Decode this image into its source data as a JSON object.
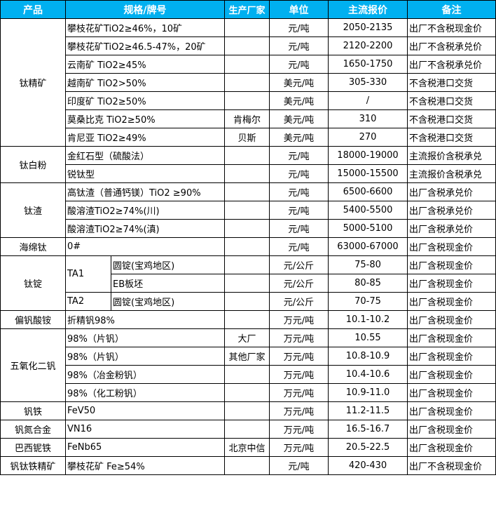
{
  "header_color": "#00B0F0",
  "headers": [
    "产品",
    "规格/牌号",
    "生产厂家",
    "单位",
    "主流报价",
    "备注"
  ],
  "groups": [
    {
      "product": "钛精矿",
      "rows": [
        {
          "spec": "攀枝花矿TiO2≥46%，10矿",
          "maker": "",
          "unit": "元/吨",
          "price": "2050-2135",
          "note": "出厂不含税现金价"
        },
        {
          "spec": "攀枝花矿TiO2≥46.5-47%，20矿",
          "maker": "",
          "unit": "元/吨",
          "price": "2120-2200",
          "note": "出厂不含税承兑价"
        },
        {
          "spec": "云南矿 TiO2≥45%",
          "maker": "",
          "unit": "元/吨",
          "price": "1650-1750",
          "note": "出厂不含税承兑价"
        },
        {
          "spec": "越南矿 TiO2>50%",
          "maker": "",
          "unit": "美元/吨",
          "price": "305-330",
          "note": "不含税港口交货"
        },
        {
          "spec": "印度矿 TiO2≥50%",
          "maker": "",
          "unit": "美元/吨",
          "price": "/",
          "note": "不含税港口交货"
        },
        {
          "spec": "莫桑比克 TiO2≥50%",
          "maker": "肯梅尔",
          "unit": "美元/吨",
          "price": "310",
          "note": "不含税港口交货"
        },
        {
          "spec": "肯尼亚 TiO2≥49%",
          "maker": "贝斯",
          "unit": "美元/吨",
          "price": "270",
          "note": "不含税港口交货"
        }
      ]
    },
    {
      "product": "钛白粉",
      "rows": [
        {
          "spec": "金红石型（硫酸法）",
          "maker": "",
          "unit": "元/吨",
          "price": "18000-19000",
          "note": "主流报价含税承兑"
        },
        {
          "spec": "锐钛型",
          "maker": "",
          "unit": "元/吨",
          "price": "15000-15500",
          "note": "主流报价含税承兑"
        }
      ]
    },
    {
      "product": "钛渣",
      "rows": [
        {
          "spec": "高钛渣（普通钙镁）TiO2 ≥90%",
          "maker": "",
          "unit": "元/吨",
          "price": "6500-6600",
          "note": "出厂含税承兑价"
        },
        {
          "spec": "酸溶渣TiO2≥74%(川)",
          "maker": "",
          "unit": "元/吨",
          "price": "5400-5500",
          "note": "出厂含税承兑价"
        },
        {
          "spec": "酸溶渣TiO2≥74%(滇)",
          "maker": "",
          "unit": "元/吨",
          "price": "5000-5100",
          "note": "出厂含税承兑价"
        }
      ]
    },
    {
      "product": "海绵钛",
      "rows": [
        {
          "spec": "0#",
          "maker": "",
          "unit": "元/吨",
          "price": "63000-67000",
          "note": "出厂含税现金价"
        }
      ]
    },
    {
      "product": "钛锭",
      "rows": [
        {
          "grade": "TA1",
          "grade_span": 2,
          "spec": "圆锭(宝鸡地区)",
          "maker": "",
          "unit": "元/公斤",
          "price": "75-80",
          "note": "出厂含税现金价"
        },
        {
          "spec": "EB板坯",
          "maker": "",
          "unit": "元/公斤",
          "price": "80-85",
          "note": "出厂含税现金价"
        },
        {
          "grade": "TA2",
          "grade_span": 1,
          "spec": "圆锭(宝鸡地区)",
          "maker": "",
          "unit": "元/公斤",
          "price": "70-75",
          "note": "出厂含税现金价"
        }
      ]
    },
    {
      "product": "偏钒酸铵",
      "rows": [
        {
          "spec": "折精钒98%",
          "maker": "",
          "unit": "万元/吨",
          "price": "10.1-10.2",
          "note": "出厂含税现金价"
        }
      ]
    },
    {
      "product": "五氧化二钒",
      "rows": [
        {
          "spec": "98%（片钒）",
          "maker": "大厂",
          "unit": "万元/吨",
          "price": "10.55",
          "note": "出厂含税现金价"
        },
        {
          "spec": "98%（片钒）",
          "maker": "其他厂家",
          "unit": "万元/吨",
          "price": "10.8-10.9",
          "note": "出厂含税现金价"
        },
        {
          "spec": "98%（冶金粉钒）",
          "maker": "",
          "unit": "万元/吨",
          "price": "10.4-10.6",
          "note": "出厂含税现金价"
        },
        {
          "spec": "98%（化工粉钒）",
          "maker": "",
          "unit": "万元/吨",
          "price": "10.9-11.0",
          "note": "出厂含税现金价"
        }
      ]
    },
    {
      "product": "钒铁",
      "rows": [
        {
          "spec": "FeV50",
          "maker": "",
          "unit": "万元/吨",
          "price": "11.2-11.5",
          "note": "出厂含税现金价"
        }
      ]
    },
    {
      "product": "钒氮合金",
      "rows": [
        {
          "spec": "VN16",
          "maker": "",
          "unit": "万元/吨",
          "price": "16.5-16.7",
          "note": "出厂含税现金价"
        }
      ]
    },
    {
      "product": "巴西铌铁",
      "rows": [
        {
          "spec": "FeNb65",
          "maker": "北京中信",
          "unit": "万元/吨",
          "price": "20.5-22.5",
          "note": "出厂含税现金价"
        }
      ]
    },
    {
      "product": "钒钛铁精矿",
      "rows": [
        {
          "spec": "攀枝花矿 Fe≥54%",
          "maker": "",
          "unit": "元/吨",
          "price": "420-430",
          "note": "出厂不含税现金价"
        }
      ]
    }
  ]
}
